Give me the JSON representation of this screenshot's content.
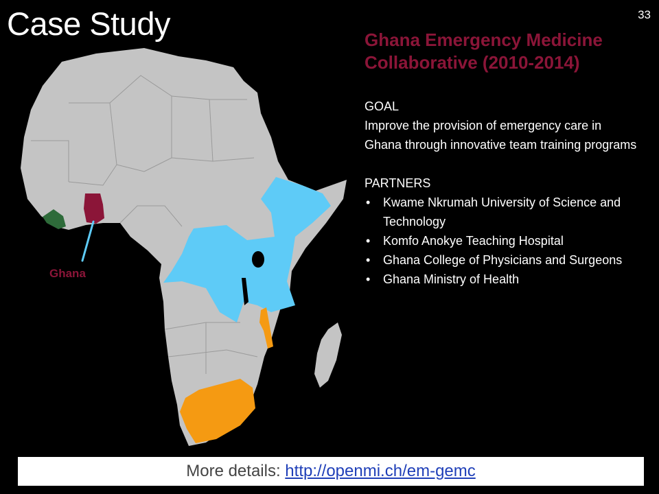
{
  "slide": {
    "title": "Case Study",
    "page_number": "33"
  },
  "map": {
    "highlight_label": "Ghana",
    "colors": {
      "land": "#c4c4c4",
      "ghana": "#8b1538",
      "liberia": "#2e6b3a",
      "east_central": "#5ecbf7",
      "southern": "#f59a12",
      "lake": "#000000"
    }
  },
  "content": {
    "heading": "Ghana Emergency Medicine Collaborative (2010-2014)",
    "goal_title": "GOAL",
    "goal_text": "Improve the provision of emergency care in Ghana through innovative team training programs",
    "partners_title": "PARTNERS",
    "partners": [
      "Kwame Nkrumah University of Science and Technology",
      "Komfo Anokye Teaching Hospital",
      "Ghana College of Physicians and Surgeons",
      "Ghana Ministry of Health"
    ],
    "bullet": "•"
  },
  "footer": {
    "prefix": "More details: ",
    "link": "http://openmi.ch/em-gemc"
  }
}
